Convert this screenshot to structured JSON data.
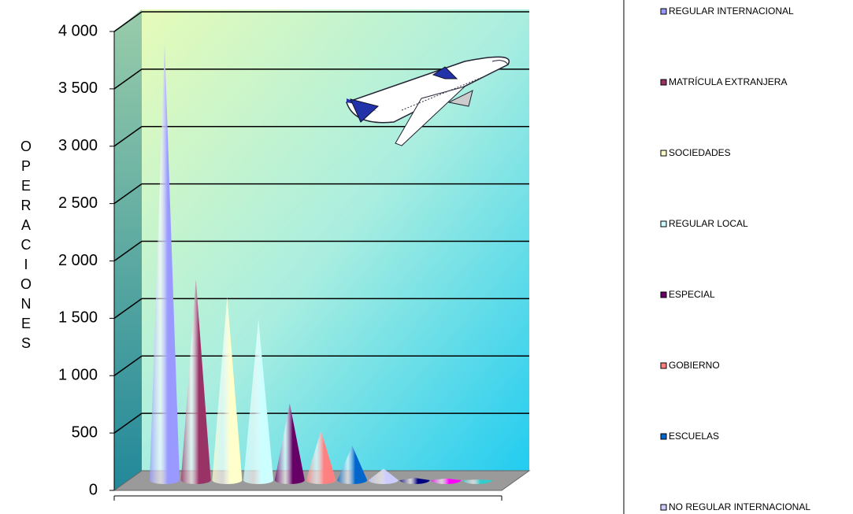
{
  "chart_data": {
    "type": "cone",
    "y_label": "OPERACIONES",
    "ylim": [
      0,
      4000
    ],
    "yticks": [
      0,
      500,
      {
        "value": 1000,
        "label": "1 000"
      },
      {
        "value": 1500,
        "label": "1 500"
      },
      {
        "value": 2000,
        "label": "2 000"
      },
      {
        "value": 2500,
        "label": "2 500"
      },
      {
        "value": 3000,
        "label": "3 000"
      },
      {
        "value": 3500,
        "label": "3 500"
      },
      {
        "value": 4000,
        "label": "4 000"
      }
    ],
    "grid": true,
    "legend": "right",
    "series": [
      {
        "name": "REGULAR INTERNACIONAL",
        "color": "#9999ff",
        "values": [
          3800
        ]
      },
      {
        "name": "MATRÍCULA EXTRANJERA",
        "color": "#993366",
        "values": [
          1750
        ]
      },
      {
        "name": "SOCIEDADES",
        "color": "#ffffcc",
        "values": [
          1600
        ]
      },
      {
        "name": "REGULAR LOCAL",
        "color": "#ccffff",
        "values": [
          1400
        ]
      },
      {
        "name": "ESPECIAL",
        "color": "#660066",
        "values": [
          670
        ]
      },
      {
        "name": "GOBIERNO",
        "color": "#ff8080",
        "values": [
          430
        ]
      },
      {
        "name": "ESCUELAS",
        "color": "#0066cc",
        "values": [
          300
        ]
      },
      {
        "name": "NO REGULAR INTERNACIONAL",
        "color": "#ccccff",
        "values": [
          100
        ]
      },
      {
        "name": null,
        "color": "#000080",
        "values": [
          20
        ]
      },
      {
        "name": null,
        "color": "#ff00ff",
        "values": [
          15
        ]
      },
      {
        "name": null,
        "color": "#33cccc",
        "values": [
          5
        ]
      }
    ]
  }
}
